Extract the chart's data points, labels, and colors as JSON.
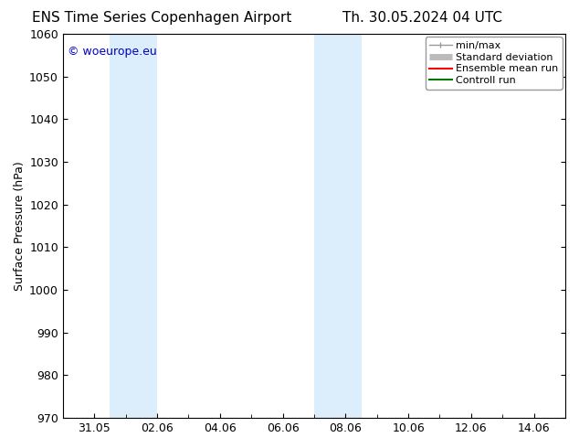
{
  "title_left": "ENS Time Series Copenhagen Airport",
  "title_right": "Th. 30.05.2024 04 UTC",
  "ylabel": "Surface Pressure (hPa)",
  "ylim": [
    970,
    1060
  ],
  "yticks": [
    970,
    980,
    990,
    1000,
    1010,
    1020,
    1030,
    1040,
    1050,
    1060
  ],
  "x_min": 0,
  "x_max": 16,
  "xtick_labels": [
    "31.05",
    "02.06",
    "04.06",
    "06.06",
    "08.06",
    "10.06",
    "12.06",
    "14.06"
  ],
  "xtick_label_positions": [
    1,
    3,
    5,
    7,
    9,
    11,
    13,
    15
  ],
  "xtick_minor_positions": [
    0,
    1,
    2,
    3,
    4,
    5,
    6,
    7,
    8,
    9,
    10,
    11,
    12,
    13,
    14,
    15,
    16
  ],
  "shaded_bands": [
    {
      "x_start": 1.5,
      "x_end": 3.0,
      "color": "#dceefb"
    },
    {
      "x_start": 8.0,
      "x_end": 9.5,
      "color": "#dceefb"
    }
  ],
  "watermark_text": "© woeurope.eu",
  "watermark_color": "#0000cc",
  "background_color": "#ffffff",
  "legend_items": [
    {
      "label": "min/max",
      "color": "#999999",
      "lw": 1.0
    },
    {
      "label": "Standard deviation",
      "color": "#bbbbbb",
      "lw": 5
    },
    {
      "label": "Ensemble mean run",
      "color": "#ff0000",
      "lw": 1.5
    },
    {
      "label": "Controll run",
      "color": "#007700",
      "lw": 1.5
    }
  ],
  "title_fontsize": 11,
  "tick_label_fontsize": 9,
  "ylabel_fontsize": 9,
  "watermark_fontsize": 9,
  "legend_fontsize": 8,
  "spine_color": "#000000",
  "tick_color": "#000000"
}
